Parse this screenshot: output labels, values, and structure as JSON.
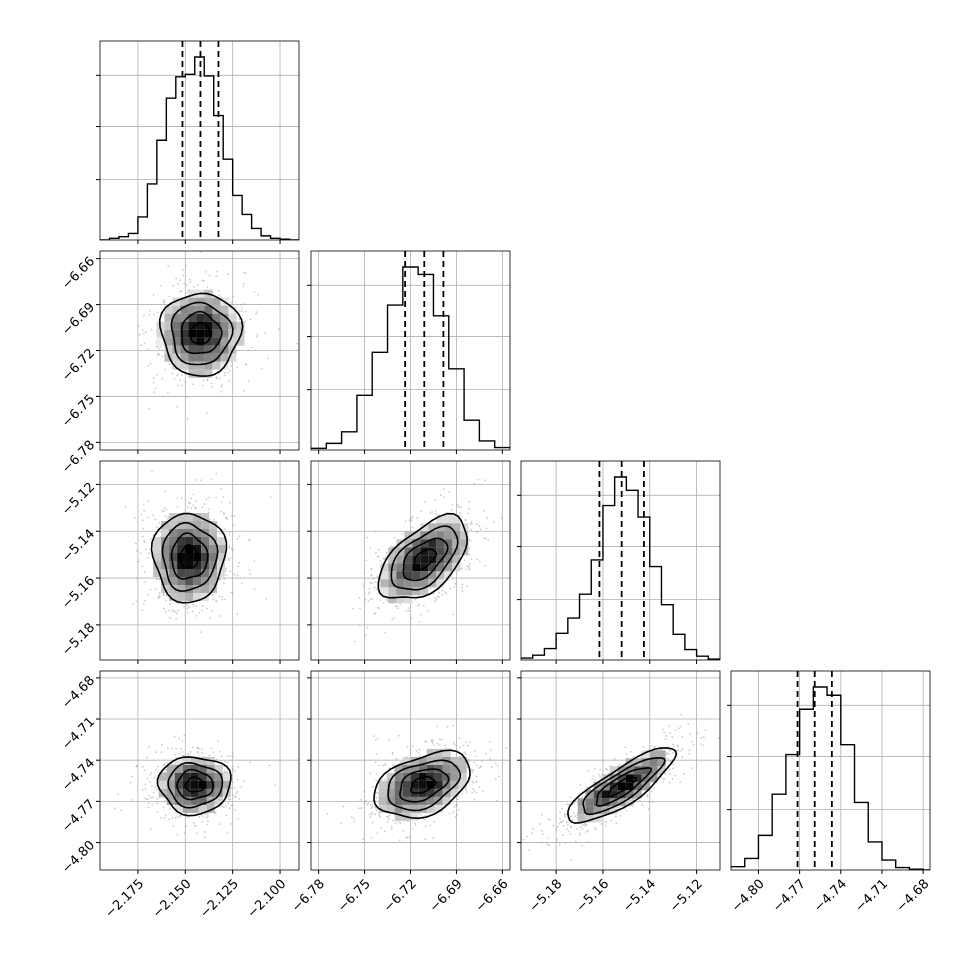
{
  "chart_data": {
    "type": "corner",
    "parameters": 4,
    "axes": [
      {
        "range": [
          -2.195,
          -2.09
        ],
        "ticks": [
          -2.175,
          -2.15,
          -2.125,
          -2.1
        ],
        "tick_labels": [
          "−2.175",
          "−2.150",
          "−2.125",
          "−2.100"
        ],
        "mean": -2.142,
        "std": 0.0095
      },
      {
        "range": [
          -6.785,
          -6.655
        ],
        "ticks": [
          -6.78,
          -6.75,
          -6.72,
          -6.69,
          -6.66
        ],
        "tick_labels": [
          "−6.78",
          "−6.75",
          "−6.72",
          "−6.69",
          "−6.66"
        ],
        "mean": -6.711,
        "std": 0.0125
      },
      {
        "range": [
          -5.195,
          -5.11
        ],
        "ticks": [
          -5.18,
          -5.16,
          -5.14,
          -5.12
        ],
        "tick_labels": [
          "−5.18",
          "−5.16",
          "−5.14",
          "−5.12"
        ],
        "mean": -5.152,
        "std": 0.0095
      },
      {
        "range": [
          -4.82,
          -4.675
        ],
        "ticks": [
          -4.8,
          -4.77,
          -4.74,
          -4.71,
          -4.68
        ],
        "tick_labels": [
          "−4.80",
          "−4.77",
          "−4.74",
          "−4.71",
          "−4.68"
        ],
        "mean": -4.759,
        "std": 0.0125
      }
    ],
    "quantiles": [
      0.16,
      0.5,
      0.84
    ],
    "histograms": [
      {
        "bin_edges": [
          -2.195,
          -2.19,
          -2.185,
          -2.18,
          -2.175,
          -2.17,
          -2.165,
          -2.16,
          -2.155,
          -2.15,
          -2.145,
          -2.14,
          -2.135,
          -2.13,
          -2.125,
          -2.12,
          -2.115,
          -2.11,
          -2.105,
          -2.1,
          -2.095,
          -2.09
        ],
        "counts": [
          0,
          2,
          4,
          8,
          28,
          68,
          121,
          172,
          198,
          201,
          222,
          199,
          151,
          98,
          54,
          31,
          14,
          5,
          2,
          1,
          0
        ]
      },
      {
        "bin_edges": [
          -6.785,
          -6.775,
          -6.765,
          -6.755,
          -6.745,
          -6.735,
          -6.725,
          -6.715,
          -6.705,
          -6.695,
          -6.685,
          -6.675,
          -6.665,
          -6.655
        ],
        "counts": [
          2,
          8,
          22,
          66,
          118,
          175,
          221,
          212,
          162,
          98,
          36,
          11,
          3
        ]
      },
      {
        "bin_edges": [
          -5.195,
          -5.19,
          -5.185,
          -5.18,
          -5.175,
          -5.17,
          -5.165,
          -5.16,
          -5.155,
          -5.15,
          -5.145,
          -5.14,
          -5.135,
          -5.13,
          -5.125,
          -5.12,
          -5.115,
          -5.11
        ],
        "counts": [
          2,
          5,
          12,
          28,
          44,
          69,
          105,
          162,
          192,
          178,
          150,
          98,
          58,
          27,
          11,
          4,
          1
        ]
      },
      {
        "bin_edges": [
          -4.82,
          -4.81,
          -4.8,
          -4.79,
          -4.78,
          -4.77,
          -4.76,
          -4.75,
          -4.74,
          -4.73,
          -4.72,
          -4.71,
          -4.7,
          -4.69,
          -4.68,
          -4.675
        ],
        "counts": [
          4,
          14,
          42,
          92,
          140,
          195,
          222,
          212,
          152,
          82,
          34,
          12,
          3,
          1,
          0
        ]
      }
    ],
    "pairs": [
      {
        "x": 0,
        "y": 1,
        "mean": [
          -2.142,
          -6.709
        ],
        "sigma": [
          0.0105,
          0.0135
        ],
        "rotation": 0
      },
      {
        "x": 0,
        "y": 2,
        "mean": [
          -2.148,
          -5.151
        ],
        "sigma": [
          0.0095,
          0.0095
        ],
        "rotation": 0
      },
      {
        "x": 0,
        "y": 3,
        "mean": [
          -2.145,
          -4.758
        ],
        "sigma": [
          0.0095,
          0.0105
        ],
        "rotation": 0
      },
      {
        "x": 1,
        "y": 2,
        "mean": [
          -6.711,
          -5.152
        ],
        "sigma": [
          0.0175,
          0.0062
        ],
        "rotation": -42
      },
      {
        "x": 1,
        "y": 3,
        "mean": [
          -6.712,
          -4.758
        ],
        "sigma": [
          0.0165,
          0.0105
        ],
        "rotation": -22
      },
      {
        "x": 2,
        "y": 3,
        "mean": [
          -5.152,
          -4.759
        ],
        "sigma": [
          0.0135,
          0.0065
        ],
        "rotation": -33
      }
    ],
    "contour_levels": [
      0.5,
      1.0,
      1.5,
      2.0
    ],
    "colors": {
      "line": "#000000",
      "grid": "#b0b0b0",
      "points": "#999999"
    },
    "grid": true
  }
}
